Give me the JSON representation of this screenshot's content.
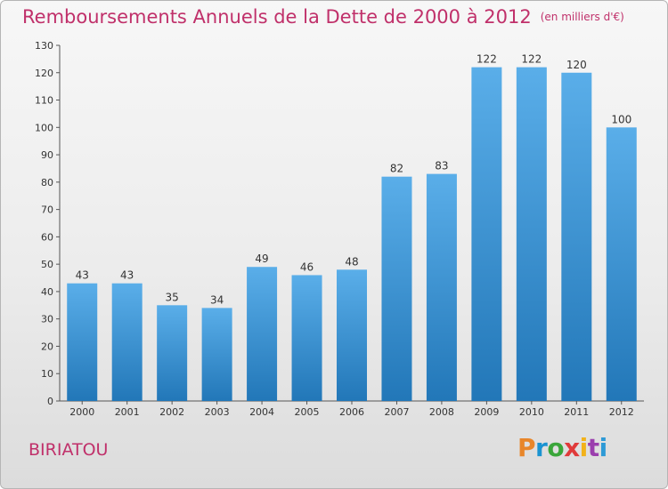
{
  "header": {
    "title": "Remboursements Annuels de la Dette de 2000 à 2012",
    "subtitle": "(en milliers d'€)"
  },
  "footer": {
    "commune": "BIRIATOU",
    "logo_text": "Proxiti"
  },
  "colors": {
    "title": "#c0306a",
    "bar_top": "#5aaee9",
    "bar_bottom": "#2277b8",
    "logo": [
      "#e8862a",
      "#1a93d1",
      "#3aa63a",
      "#e03a3a",
      "#f2b21a",
      "#9b3fae",
      "#2e9ad6"
    ]
  },
  "chart_data": {
    "type": "bar",
    "title": "Remboursements Annuels de la Dette de 2000 à 2012",
    "subtitle": "(en milliers d'€)",
    "xlabel": "",
    "ylabel": "",
    "categories": [
      "2000",
      "2001",
      "2002",
      "2003",
      "2004",
      "2005",
      "2006",
      "2007",
      "2008",
      "2009",
      "2010",
      "2011",
      "2012"
    ],
    "values": [
      43,
      43,
      35,
      34,
      49,
      46,
      48,
      82,
      83,
      122,
      122,
      120,
      100
    ],
    "ylim": [
      0,
      130
    ],
    "yticks": [
      0,
      10,
      20,
      30,
      40,
      50,
      60,
      70,
      80,
      90,
      100,
      110,
      120,
      130
    ],
    "grid": false,
    "legend": "none",
    "data_labels": true
  }
}
